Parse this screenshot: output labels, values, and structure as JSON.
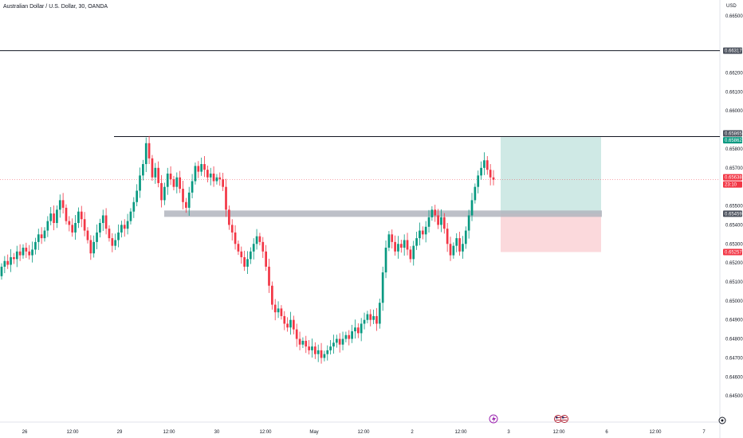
{
  "header": {
    "title": "Australian Dollar / U.S. Dollar, 30, OANDA",
    "currency": "USD"
  },
  "colors": {
    "up": "#089981",
    "down": "#f23645",
    "line": "#131722",
    "zone": "#b2b5be",
    "target": "#cfe9e5",
    "stop": "#fbd9dc",
    "neutral_tag": "#4c525e",
    "up_tag": "#089981",
    "down_tag": "#f23645"
  },
  "chart_data": {
    "type": "candlestick",
    "symbol": "AUDUSD",
    "timeframe": "30",
    "x_tick_labels": [
      "26",
      "12:00",
      "29",
      "12:00",
      "30",
      "12:00",
      "May",
      "12:00",
      "2",
      "12:00",
      "3",
      "12:00",
      "6",
      "12:00",
      "7"
    ],
    "y_ticks": [
      0.645,
      0.646,
      0.647,
      0.648,
      0.649,
      0.65,
      0.651,
      0.652,
      0.653,
      0.654,
      0.655,
      0.657,
      0.658,
      0.66,
      0.661,
      0.662,
      0.665
    ],
    "ylim": [
      0.644,
      0.6655
    ],
    "price_tags": [
      {
        "value": "0.66317",
        "style": "neutral"
      },
      {
        "value": "0.65865",
        "style": "neutral"
      },
      {
        "value": "0.65862",
        "style": "up"
      },
      {
        "value": "0.65638",
        "style": "down"
      },
      {
        "value": "23:10",
        "style": "down"
      },
      {
        "value": "0.65459",
        "style": "neutral"
      },
      {
        "value": "0.65257",
        "style": "down"
      }
    ],
    "horizontal_lines": [
      {
        "price": 0.66317,
        "extent": "full"
      },
      {
        "price": 0.65865,
        "extent": "from-29"
      }
    ],
    "support_zone": {
      "price": 0.65459
    },
    "position": {
      "entry": 0.65459,
      "target": 0.65862,
      "stop": 0.65257
    },
    "last_price": 0.65638,
    "closes": [
      0.6518,
      0.6521,
      0.6519,
      0.6523,
      0.6522,
      0.6526,
      0.6524,
      0.6528,
      0.6526,
      0.6524,
      0.6527,
      0.6531,
      0.6535,
      0.6533,
      0.6537,
      0.6542,
      0.6546,
      0.6541,
      0.6548,
      0.6553,
      0.6549,
      0.6542,
      0.654,
      0.6536,
      0.6541,
      0.6547,
      0.6543,
      0.6537,
      0.6532,
      0.6525,
      0.6531,
      0.6536,
      0.6541,
      0.6545,
      0.6538,
      0.6533,
      0.6529,
      0.6532,
      0.6536,
      0.654,
      0.6538,
      0.6542,
      0.6547,
      0.6552,
      0.6558,
      0.6566,
      0.6572,
      0.6583,
      0.6575,
      0.6565,
      0.657,
      0.6562,
      0.6553,
      0.656,
      0.6567,
      0.6564,
      0.656,
      0.6565,
      0.6559,
      0.6552,
      0.6549,
      0.6557,
      0.6563,
      0.6571,
      0.6568,
      0.6572,
      0.6569,
      0.6565,
      0.6567,
      0.6563,
      0.6565,
      0.6564,
      0.656,
      0.6548,
      0.654,
      0.6536,
      0.653,
      0.6526,
      0.6523,
      0.6518,
      0.6522,
      0.6526,
      0.653,
      0.6534,
      0.6531,
      0.6526,
      0.6518,
      0.6508,
      0.6498,
      0.6494,
      0.6496,
      0.6492,
      0.6488,
      0.6486,
      0.649,
      0.6485,
      0.648,
      0.6477,
      0.6479,
      0.6476,
      0.6474,
      0.6476,
      0.6472,
      0.6474,
      0.647,
      0.6472,
      0.6474,
      0.6476,
      0.6478,
      0.648,
      0.6477,
      0.648,
      0.6482,
      0.648,
      0.6484,
      0.6486,
      0.6483,
      0.6488,
      0.649,
      0.6493,
      0.649,
      0.6492,
      0.6488,
      0.6499,
      0.6515,
      0.6528,
      0.6535,
      0.6531,
      0.6526,
      0.653,
      0.6528,
      0.6532,
      0.6527,
      0.6522,
      0.6529,
      0.6533,
      0.6537,
      0.6535,
      0.6539,
      0.6544,
      0.6548,
      0.6545,
      0.654,
      0.6544,
      0.6538,
      0.653,
      0.6524,
      0.6529,
      0.6533,
      0.6526,
      0.653,
      0.6537,
      0.6545,
      0.6553,
      0.656,
      0.6566,
      0.657,
      0.6574,
      0.6569,
      0.6565,
      0.65638
    ]
  }
}
